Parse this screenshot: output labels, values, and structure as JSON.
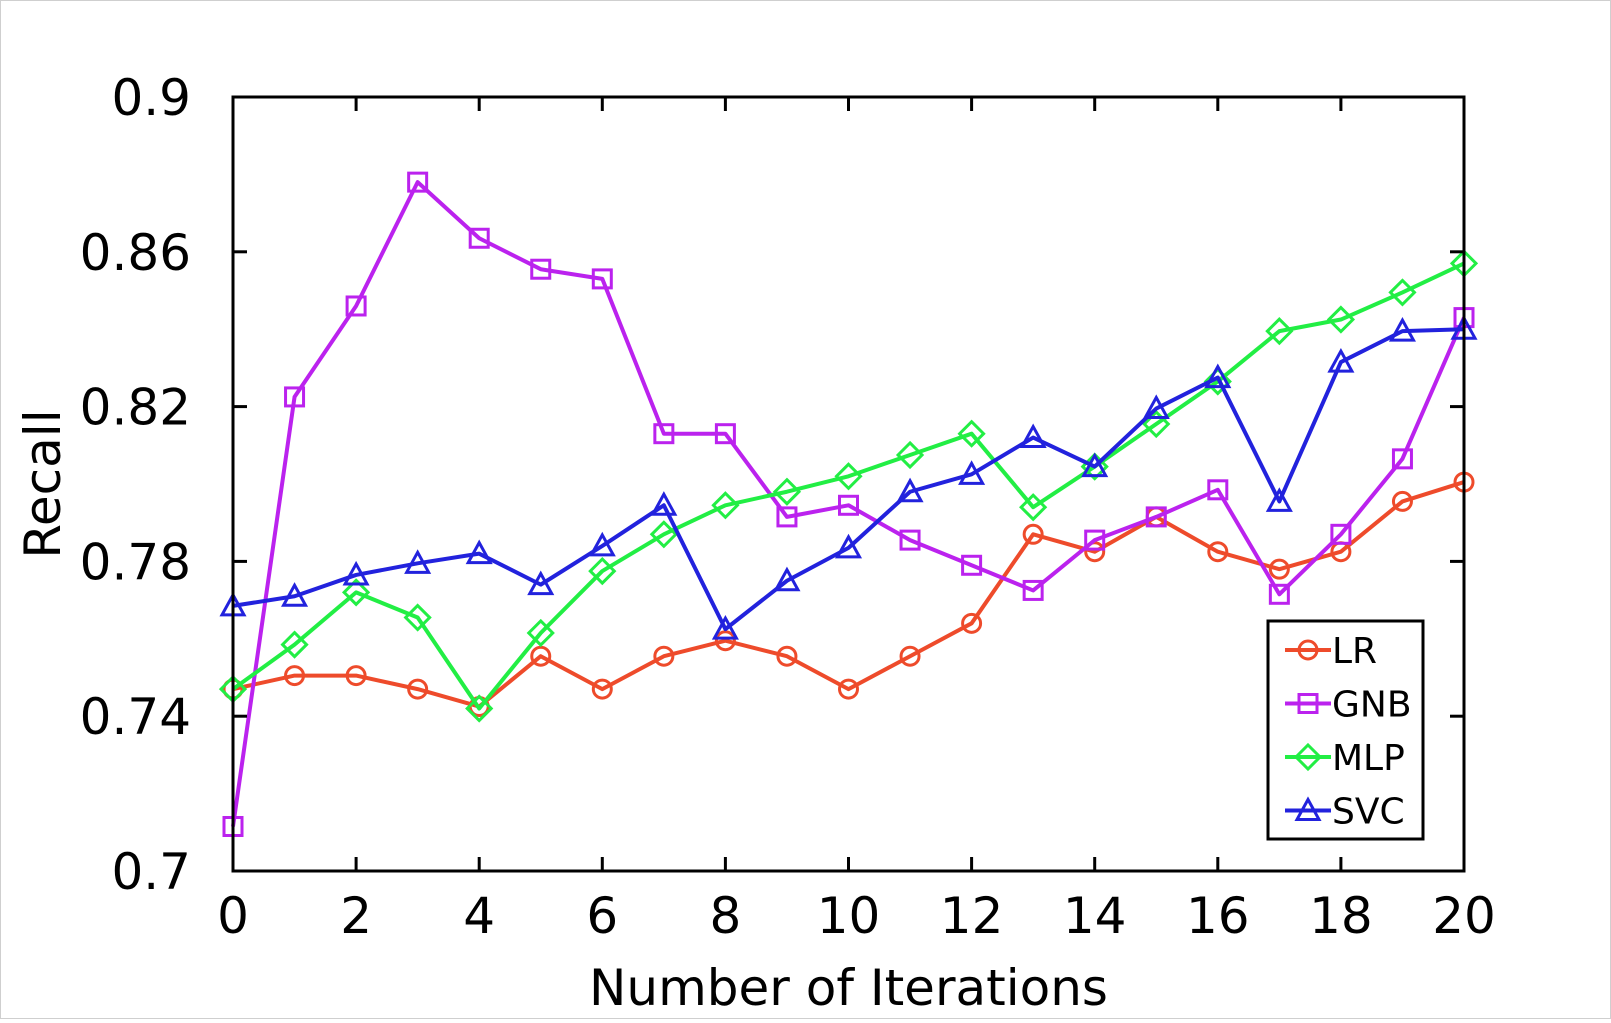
{
  "chart_data": {
    "type": "line",
    "xlabel": "Number of Iterations",
    "ylabel": "Recall",
    "xlim": [
      0,
      20
    ],
    "ylim": [
      0.7,
      0.9
    ],
    "xticks": [
      0,
      2,
      4,
      6,
      8,
      10,
      12,
      14,
      16,
      18,
      20
    ],
    "xtick_labels": [
      "0",
      "2",
      "4",
      "6",
      "8",
      "10",
      "12",
      "14",
      "16",
      "18",
      "20"
    ],
    "yticks": [
      0.7,
      0.74,
      0.78,
      0.82,
      0.86,
      0.9
    ],
    "ytick_labels": [
      "0.7",
      "0.74",
      "0.78",
      "0.82",
      "0.86",
      "0.9"
    ],
    "grid": false,
    "legend_position": "bottom-right",
    "x": [
      0,
      1,
      2,
      3,
      4,
      5,
      6,
      7,
      8,
      9,
      10,
      11,
      12,
      13,
      14,
      15,
      16,
      17,
      18,
      19,
      20
    ],
    "series": [
      {
        "name": "LR",
        "color": "#ee4b2b",
        "marker": "circle",
        "values": [
          0.747,
          0.7505,
          0.7505,
          0.747,
          0.7425,
          0.7555,
          0.747,
          0.7555,
          0.7595,
          0.7555,
          0.747,
          0.7555,
          0.764,
          0.787,
          0.7825,
          0.7915,
          0.7825,
          0.778,
          0.7825,
          0.7955,
          0.8005
        ]
      },
      {
        "name": "GNB",
        "color": "#bb22ee",
        "marker": "square",
        "values": [
          0.7115,
          0.8225,
          0.846,
          0.878,
          0.8635,
          0.8555,
          0.853,
          0.813,
          0.813,
          0.7915,
          0.7945,
          0.7855,
          0.779,
          0.7725,
          0.7855,
          0.7915,
          0.7985,
          0.7715,
          0.787,
          0.8065,
          0.843
        ]
      },
      {
        "name": "MLP",
        "color": "#22ee44",
        "marker": "diamond",
        "values": [
          0.747,
          0.7585,
          0.772,
          0.7655,
          0.742,
          0.7615,
          0.7775,
          0.787,
          0.7945,
          0.798,
          0.802,
          0.8075,
          0.813,
          0.794,
          0.8045,
          0.8155,
          0.8265,
          0.8395,
          0.8425,
          0.8495,
          0.857
        ]
      },
      {
        "name": "SVC",
        "color": "#2222dd",
        "marker": "triangle",
        "values": [
          0.7685,
          0.771,
          0.7765,
          0.7795,
          0.782,
          0.774,
          0.784,
          0.7945,
          0.7625,
          0.775,
          0.7835,
          0.798,
          0.8025,
          0.812,
          0.8045,
          0.8195,
          0.8275,
          0.7955,
          0.8315,
          0.8395,
          0.84
        ]
      }
    ]
  }
}
